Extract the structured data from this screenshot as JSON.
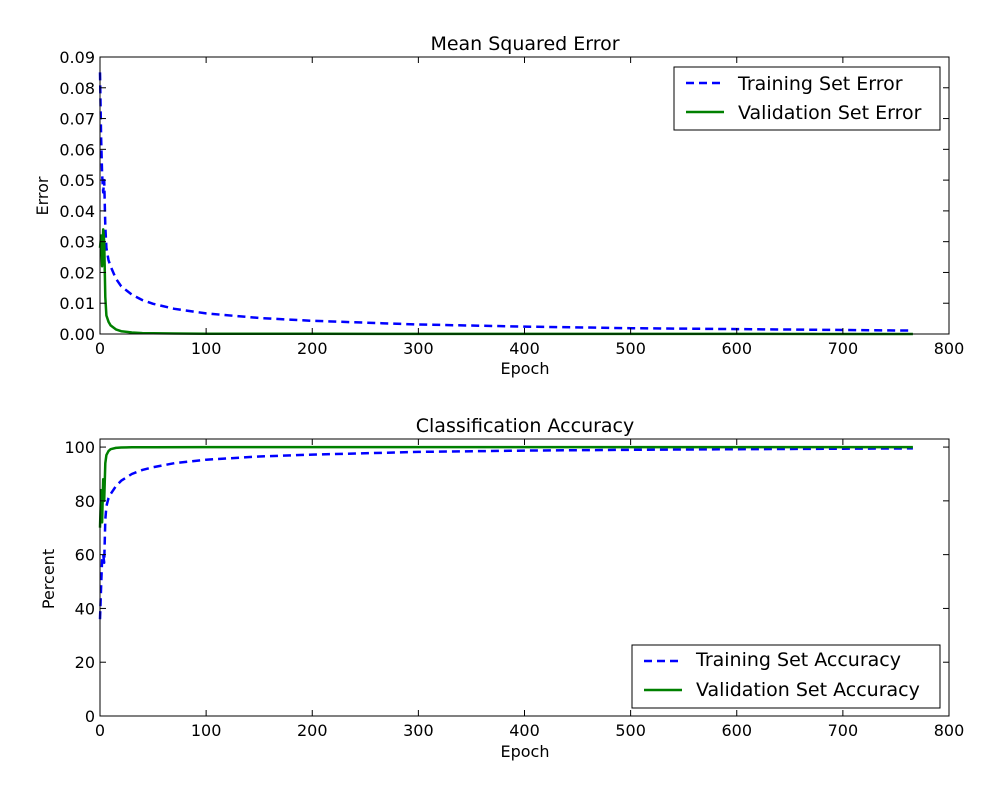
{
  "chart_data": [
    {
      "type": "line",
      "title": "Mean Squared Error",
      "xlabel": "Epoch",
      "ylabel": "Error",
      "xlim": [
        0,
        800
      ],
      "ylim": [
        0,
        0.09
      ],
      "x_ticks": [
        "0",
        "100",
        "200",
        "300",
        "400",
        "500",
        "600",
        "700",
        "800"
      ],
      "y_ticks": [
        "0.00",
        "0.01",
        "0.02",
        "0.03",
        "0.04",
        "0.05",
        "0.06",
        "0.07",
        "0.08",
        "0.09"
      ],
      "grid": false,
      "legend_position": "top-right",
      "series": [
        {
          "name": "Training Set Error",
          "color": "#0000ff",
          "style": "dashed",
          "x": [
            0,
            1,
            2,
            3,
            4,
            5,
            6,
            8,
            10,
            15,
            20,
            30,
            40,
            50,
            70,
            100,
            150,
            200,
            300,
            400,
            500,
            600,
            700,
            766
          ],
          "y": [
            0.085,
            0.064,
            0.052,
            0.046,
            0.05,
            0.035,
            0.028,
            0.024,
            0.022,
            0.018,
            0.0155,
            0.0128,
            0.011,
            0.0098,
            0.0082,
            0.0067,
            0.0052,
            0.0043,
            0.0031,
            0.0024,
            0.0019,
            0.0016,
            0.0013,
            0.0011
          ]
        },
        {
          "name": "Validation Set Error",
          "color": "#008000",
          "style": "solid",
          "x": [
            0,
            1,
            2,
            3,
            4,
            5,
            6,
            8,
            10,
            15,
            20,
            30,
            40,
            50,
            70,
            100,
            200,
            300,
            400,
            500,
            600,
            700,
            766
          ],
          "y": [
            0.028,
            0.032,
            0.022,
            0.034,
            0.03,
            0.012,
            0.006,
            0.004,
            0.0028,
            0.0015,
            0.0009,
            0.0005,
            0.0003,
            0.00022,
            0.00015,
            0.0001,
            6e-05,
            4e-05,
            3e-05,
            2e-05,
            2e-05,
            1e-05,
            1e-05
          ]
        }
      ]
    },
    {
      "type": "line",
      "title": "Classification Accuracy",
      "xlabel": "Epoch",
      "ylabel": "Percent",
      "xlim": [
        0,
        800
      ],
      "ylim": [
        0,
        103
      ],
      "x_ticks": [
        "0",
        "100",
        "200",
        "300",
        "400",
        "500",
        "600",
        "700",
        "800"
      ],
      "y_ticks": [
        "0",
        "20",
        "40",
        "60",
        "80",
        "100"
      ],
      "grid": false,
      "legend_position": "bottom-right",
      "series": [
        {
          "name": "Training Set Accuracy",
          "color": "#0000ff",
          "style": "dashed",
          "x": [
            0,
            1,
            2,
            3,
            4,
            5,
            6,
            8,
            10,
            15,
            20,
            30,
            40,
            50,
            70,
            100,
            150,
            200,
            300,
            400,
            500,
            600,
            700,
            766
          ],
          "y": [
            36,
            48,
            58,
            60,
            57,
            73,
            78,
            81,
            82.5,
            85.5,
            87.5,
            90,
            91.5,
            92.5,
            94,
            95.3,
            96.5,
            97.2,
            98.2,
            98.7,
            99,
            99.2,
            99.4,
            99.5
          ]
        },
        {
          "name": "Validation Set Accuracy",
          "color": "#008000",
          "style": "solid",
          "x": [
            0,
            1,
            2,
            3,
            4,
            5,
            6,
            8,
            10,
            15,
            20,
            30,
            50,
            100,
            200,
            300,
            400,
            500,
            600,
            700,
            766
          ],
          "y": [
            70,
            84,
            72,
            88,
            80,
            94,
            97,
            98.5,
            99.2,
            99.7,
            99.85,
            99.9,
            99.95,
            100,
            100,
            100,
            100,
            100,
            100,
            100,
            100
          ]
        }
      ]
    }
  ]
}
